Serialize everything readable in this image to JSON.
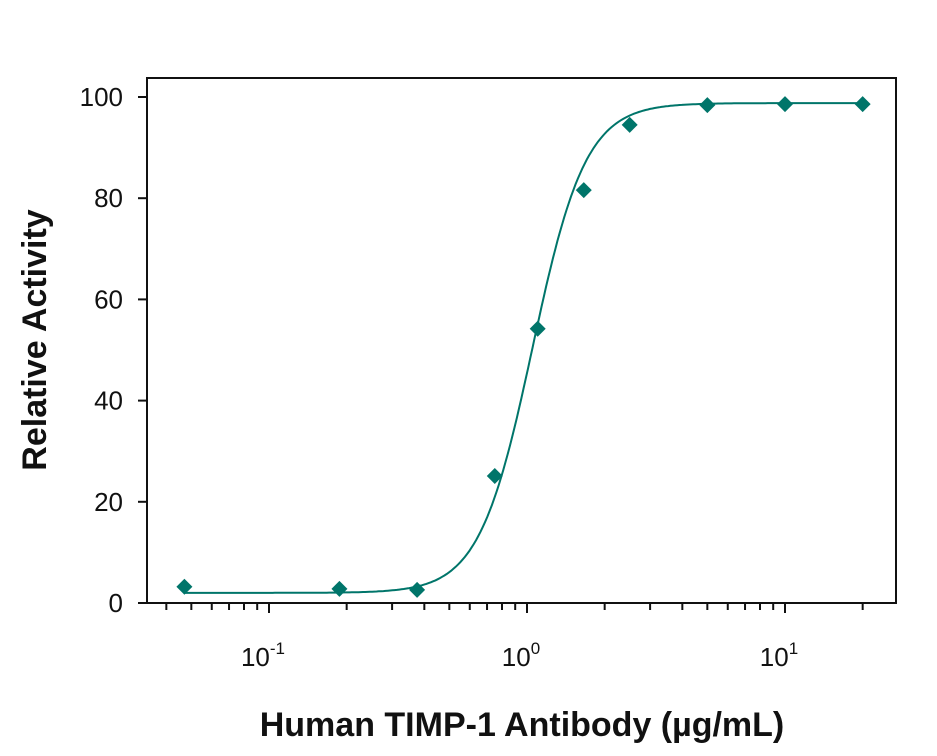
{
  "chart_data": {
    "type": "line",
    "title": "",
    "xlabel": "Human TIMP-1 Antibody (µg/mL)",
    "ylabel": "Relative Activity",
    "xscale": "log",
    "xlim": [
      0.036,
      28
    ],
    "ylim": [
      0,
      100
    ],
    "x_ticks": [
      {
        "value": 0.1,
        "base": "10",
        "exp": "-1"
      },
      {
        "value": 1,
        "base": "10",
        "exp": "0"
      },
      {
        "value": 10,
        "base": "10",
        "exp": "1"
      }
    ],
    "y_ticks": [
      0,
      20,
      40,
      60,
      80,
      100
    ],
    "grid": false,
    "legend": null,
    "color": "#00756A",
    "series": [
      {
        "name": "Relative Activity",
        "marker": "diamond",
        "x": [
          0.047,
          0.1875,
          0.375,
          0.75,
          1.1,
          1.66,
          2.5,
          5,
          10,
          20
        ],
        "y": [
          3.2,
          2.8,
          2.6,
          25.1,
          54.2,
          81.6,
          94.5,
          98.4,
          98.6,
          98.6
        ]
      }
    ],
    "fit_curve": {
      "type": "4PL",
      "bottom": 2.0,
      "top": 98.8,
      "ec50": 1.05,
      "hill": 4.2
    }
  }
}
